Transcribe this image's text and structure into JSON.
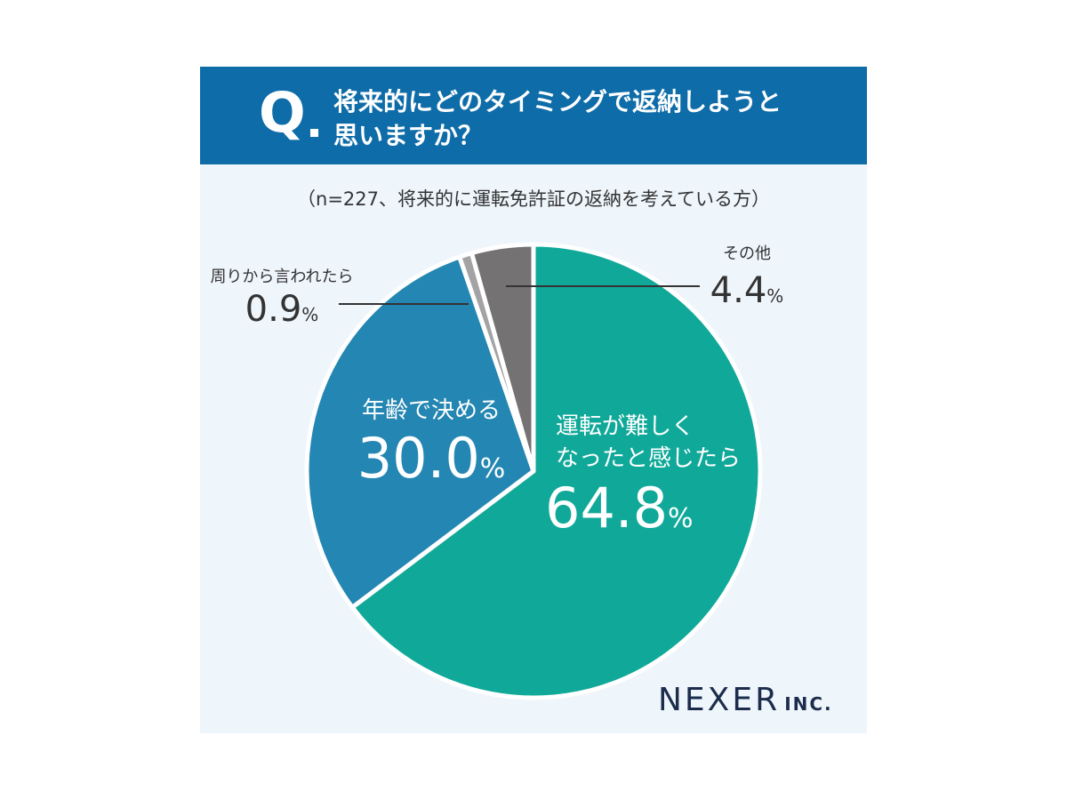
{
  "header": {
    "q_mark": "Q",
    "question_line1": "将来的にどのタイミングで返納しようと",
    "question_line2": "思いますか？"
  },
  "subtitle": "（n=227、将来的に運転免許証の返納を考えている方）",
  "chart_data": {
    "type": "pie",
    "title": "将来的にどのタイミングで返納しようと思いますか？",
    "subtitle": "（n=227、将来的に運転免許証の返納を考えている方）",
    "unit": "%",
    "start": "12 o'clock, clockwise",
    "slices": [
      {
        "label_lines": [
          "運転が難しく",
          "なったと感じたら"
        ],
        "value": 64.8,
        "value_text": "64.8",
        "color": "#10a999"
      },
      {
        "label_lines": [
          "年齢で決める"
        ],
        "value": 30.0,
        "value_text": "30.0",
        "color": "#2486b2"
      },
      {
        "label_lines": [
          "周りから言われたら"
        ],
        "value": 0.9,
        "value_text": "0.9",
        "color": "#a3a3a5"
      },
      {
        "label_lines": [
          "その他"
        ],
        "value": 4.4,
        "value_text": "4.4",
        "color": "#747273"
      }
    ]
  },
  "brand": {
    "name": "NEXER",
    "suffix": "INC."
  }
}
